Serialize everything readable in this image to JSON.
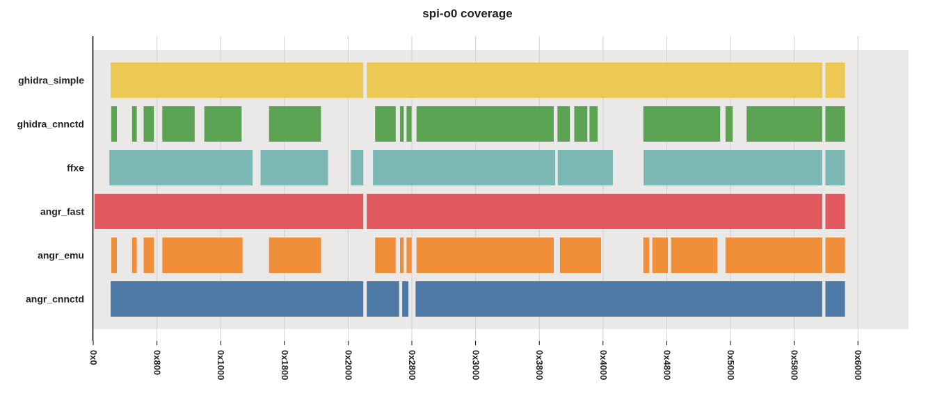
{
  "chart_data": {
    "type": "bar",
    "orientation": "horizontal-intervals",
    "title": "spi-o0 coverage",
    "xlabel": "",
    "ylabel": "",
    "xlim": [
      0,
      25600
    ],
    "grid": true,
    "x_ticks": [
      {
        "value": 0,
        "label": "0x0"
      },
      {
        "value": 2048,
        "label": "0x800"
      },
      {
        "value": 4096,
        "label": "0x1000"
      },
      {
        "value": 6144,
        "label": "0x1800"
      },
      {
        "value": 8192,
        "label": "0x2000"
      },
      {
        "value": 10240,
        "label": "0x2800"
      },
      {
        "value": 12288,
        "label": "0x3000"
      },
      {
        "value": 14336,
        "label": "0x3800"
      },
      {
        "value": 16384,
        "label": "0x4000"
      },
      {
        "value": 18432,
        "label": "0x4800"
      },
      {
        "value": 20480,
        "label": "0x5000"
      },
      {
        "value": 22528,
        "label": "0x5800"
      },
      {
        "value": 24576,
        "label": "0x6000"
      }
    ],
    "series": [
      {
        "name": "ghidra_simple",
        "color": "#ecc955",
        "intervals": [
          [
            560,
            8680
          ],
          [
            8790,
            23430
          ],
          [
            23530,
            24160
          ]
        ]
      },
      {
        "name": "ghidra_cnnctd",
        "color": "#5ba352",
        "intervals": [
          [
            580,
            760
          ],
          [
            1250,
            1400
          ],
          [
            1620,
            1950
          ],
          [
            2220,
            3260
          ],
          [
            3570,
            4770
          ],
          [
            5650,
            7320
          ],
          [
            9060,
            9720
          ],
          [
            9860,
            9980
          ],
          [
            10070,
            10230
          ],
          [
            10390,
            14800
          ],
          [
            14920,
            15320
          ],
          [
            15460,
            15880
          ],
          [
            15950,
            16210
          ],
          [
            17680,
            20150
          ],
          [
            20320,
            20550
          ],
          [
            21000,
            23430
          ],
          [
            23530,
            24160
          ]
        ]
      },
      {
        "name": "ffxe",
        "color": "#7bb8b3",
        "intervals": [
          [
            520,
            5120
          ],
          [
            5380,
            7550
          ],
          [
            8280,
            8680
          ],
          [
            8990,
            14850
          ],
          [
            14930,
            16700
          ],
          [
            17690,
            23430
          ],
          [
            23530,
            24160
          ]
        ]
      },
      {
        "name": "angr_fast",
        "color": "#e05a5f",
        "intervals": [
          [
            40,
            8680
          ],
          [
            8790,
            23430
          ],
          [
            23530,
            24160
          ]
        ]
      },
      {
        "name": "angr_emu",
        "color": "#f08e3a",
        "intervals": [
          [
            580,
            760
          ],
          [
            1250,
            1400
          ],
          [
            1620,
            1950
          ],
          [
            2220,
            4800
          ],
          [
            5650,
            7320
          ],
          [
            9060,
            9720
          ],
          [
            9860,
            9980
          ],
          [
            10070,
            10230
          ],
          [
            10390,
            14800
          ],
          [
            15000,
            16320
          ],
          [
            17680,
            17870
          ],
          [
            17970,
            18470
          ],
          [
            18570,
            20060
          ],
          [
            20320,
            23430
          ],
          [
            23530,
            24160
          ]
        ]
      },
      {
        "name": "angr_cnnctd",
        "color": "#4d79a7",
        "intervals": [
          [
            560,
            8680
          ],
          [
            8790,
            9830
          ],
          [
            9930,
            10130
          ],
          [
            10360,
            23430
          ],
          [
            23530,
            24160
          ]
        ]
      }
    ]
  }
}
